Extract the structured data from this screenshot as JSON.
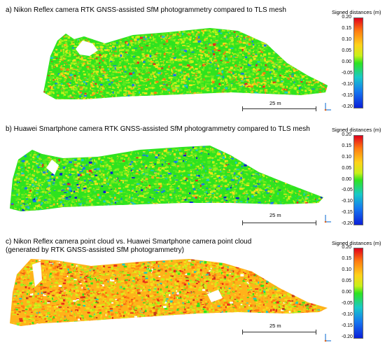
{
  "panels": [
    {
      "title": "a) Nikon Reflex camera RTK GNSS-assisted SfM photogrammetry compared to TLS mesh",
      "scalebar": "25 m",
      "palette": [
        "#2fe31f",
        "#5ee81e",
        "#9bee1c",
        "#c8f01a",
        "#f2e11b",
        "#ffb21a",
        "#ff7a10",
        "#e62c1a",
        "#18c9c8",
        "#1677f0"
      ],
      "weights": [
        26,
        20,
        16,
        12,
        10,
        6,
        4,
        2,
        2,
        2
      ]
    },
    {
      "title": "b) Huawei Smartphone camera RTK GNSS-assisted SfM photogrammetry compared to TLS mesh",
      "scalebar": "25 m",
      "palette": [
        "#2fe31f",
        "#5ee81e",
        "#9bee1c",
        "#c8f01a",
        "#f2e11b",
        "#ffb21a",
        "#18c9c8",
        "#1677f0",
        "#0b1fd8",
        "#e62c1a"
      ],
      "weights": [
        34,
        20,
        14,
        10,
        7,
        3,
        5,
        4,
        2,
        1
      ]
    },
    {
      "title": "c) Nikon Reflex camera point cloud vs. Huawei Smartphone camera point cloud\n(generated by RTK GNSS-assisted SfM photogrammetry)",
      "scalebar": "25 m",
      "palette": [
        "#ffb21a",
        "#f2e11b",
        "#ff7a10",
        "#c8f01a",
        "#9bee1c",
        "#e62c1a",
        "#2fe31f",
        "#c23a1a",
        "#18c9c8",
        "#ffffff"
      ],
      "weights": [
        26,
        22,
        14,
        12,
        8,
        6,
        5,
        3,
        2,
        2
      ]
    }
  ],
  "colorbar": {
    "title": "Signed distances (m)",
    "ticks": [
      "0.20",
      "0.15",
      "0.10",
      "0.05",
      "0.00",
      "-0.05",
      "-0.10",
      "-0.15",
      "-0.20"
    ],
    "min": -0.2,
    "max": 0.2
  }
}
